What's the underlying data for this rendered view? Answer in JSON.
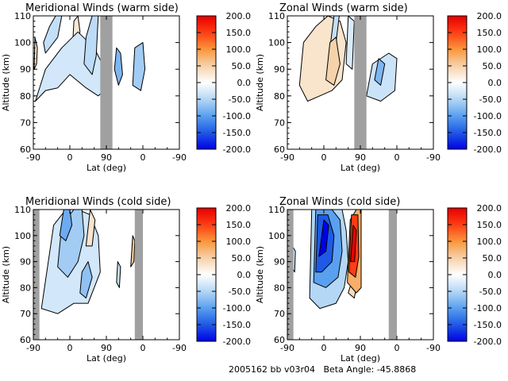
{
  "figure": {
    "footer": "2005162 bb v03r04   Beta Angle: -45.8868"
  },
  "chart_data": [
    {
      "type": "heatmap",
      "title": "Meridional Winds (warm side)",
      "xlabel": "Lat (deg)",
      "ylabel": "Altitude (km)",
      "x_ticks": [
        "-90",
        "0",
        "90",
        "0",
        "-90"
      ],
      "y_ticks": [
        "60",
        "70",
        "80",
        "90",
        "100",
        "110"
      ],
      "ylim": [
        60,
        110
      ],
      "colorbar": {
        "ticks": [
          "200.0",
          "150.0",
          "100.0",
          "50.0",
          "0.0",
          "-50.0",
          "-100.0",
          "-150.0",
          "-200.0"
        ],
        "range": [
          -200,
          200
        ]
      },
      "no_data_bands": [
        [
          75,
          105
        ]
      ],
      "contours": [
        {
          "value": -40,
          "x": [
            -60,
            -30,
            -20,
            -35,
            -50,
            -65,
            -60
          ],
          "y": [
            96,
            102,
            110,
            110,
            106,
            100,
            96
          ]
        },
        {
          "value": 25,
          "x": [
            5,
            15,
            25,
            20,
            10,
            5
          ],
          "y": [
            94,
            96,
            104,
            110,
            108,
            94
          ]
        },
        {
          "value": -45,
          "x": [
            35,
            55,
            65,
            70,
            55,
            40,
            35
          ],
          "y": [
            92,
            88,
            95,
            110,
            110,
            102,
            92
          ]
        },
        {
          "value": -30,
          "x": [
            -85,
            -60,
            -30,
            0,
            40,
            70,
            85,
            80,
            60,
            20,
            -20,
            -60,
            -85
          ],
          "y": [
            78,
            82,
            83,
            88,
            83,
            80,
            82,
            92,
            98,
            104,
            98,
            90,
            78
          ]
        },
        {
          "value": -80,
          "x": [
            110,
            120,
            130,
            125,
            115,
            110
          ],
          "y": [
            90,
            84,
            88,
            96,
            98,
            90
          ]
        },
        {
          "value": -60,
          "x": [
            155,
            175,
            185,
            180,
            160,
            155
          ],
          "y": [
            84,
            82,
            90,
            100,
            98,
            84
          ]
        },
        {
          "value": 40,
          "x": [
            -88,
            -82,
            -80,
            -86,
            -88
          ],
          "y": [
            90,
            92,
            98,
            102,
            90
          ]
        }
      ]
    },
    {
      "type": "heatmap",
      "title": "Zonal Winds (warm side)",
      "xlabel": "Lat (deg)",
      "ylabel": "Altitude (km)",
      "x_ticks": [
        "-90",
        "0",
        "90",
        "0",
        "-90"
      ],
      "y_ticks": [
        "60",
        "70",
        "80",
        "90",
        "100",
        "110"
      ],
      "ylim": [
        60,
        110
      ],
      "colorbar": {
        "ticks": [
          "200.0",
          "150.0",
          "100.0",
          "50.0",
          "0.0",
          "-50.0",
          "-100.0",
          "-150.0",
          "-200.0"
        ],
        "range": [
          -200,
          200
        ]
      },
      "no_data_bands": [
        [
          75,
          105
        ]
      ],
      "contours": [
        {
          "value": 30,
          "x": [
            -60,
            -40,
            -10,
            20,
            45,
            55,
            40,
            10,
            -20,
            -50,
            -60
          ],
          "y": [
            84,
            78,
            80,
            82,
            86,
            100,
            108,
            110,
            106,
            100,
            84
          ]
        },
        {
          "value": 50,
          "x": [
            5,
            25,
            40,
            30,
            15,
            5
          ],
          "y": [
            86,
            84,
            92,
            102,
            100,
            86
          ]
        },
        {
          "value": -25,
          "x": [
            55,
            70,
            75,
            60,
            55
          ],
          "y": [
            92,
            90,
            108,
            110,
            92
          ]
        },
        {
          "value": -40,
          "x": [
            15,
            30,
            38,
            25,
            15
          ],
          "y": [
            98,
            100,
            110,
            110,
            98
          ]
        },
        {
          "value": -35,
          "x": [
            105,
            140,
            175,
            180,
            160,
            120,
            105
          ],
          "y": [
            80,
            78,
            82,
            94,
            96,
            92,
            80
          ]
        },
        {
          "value": -80,
          "x": [
            125,
            140,
            150,
            135,
            125
          ],
          "y": [
            86,
            84,
            92,
            94,
            86
          ]
        }
      ]
    },
    {
      "type": "heatmap",
      "title": "Meridional Winds (cold side)",
      "xlabel": "Lat (deg)",
      "ylabel": "Altitude (km)",
      "x_ticks": [
        "-90",
        "0",
        "90",
        "0",
        "-90"
      ],
      "y_ticks": [
        "60",
        "70",
        "80",
        "90",
        "100",
        "110"
      ],
      "ylim": [
        60,
        110
      ],
      "colorbar": {
        "ticks": [
          "200.0",
          "150.0",
          "100.0",
          "50.0",
          "0.0",
          "-50.0",
          "-100.0",
          "-150.0",
          "-200.0"
        ],
        "range": [
          -200,
          200
        ]
      },
      "no_data_bands": [
        [
          -90,
          -75
        ],
        [
          160,
          180
        ]
      ],
      "contours": [
        {
          "value": -30,
          "x": [
            -70,
            -30,
            10,
            45,
            60,
            75,
            70,
            50,
            20,
            -10,
            -40,
            -70
          ],
          "y": [
            72,
            70,
            74,
            74,
            80,
            86,
            100,
            108,
            110,
            110,
            104,
            72
          ]
        },
        {
          "value": -60,
          "x": [
            -30,
            -5,
            20,
            35,
            30,
            10,
            -20,
            -30
          ],
          "y": [
            88,
            84,
            90,
            100,
            110,
            110,
            104,
            88
          ]
        },
        {
          "value": -90,
          "x": [
            -25,
            -10,
            5,
            0,
            -15,
            -25
          ],
          "y": [
            100,
            98,
            104,
            110,
            110,
            100
          ]
        },
        {
          "value": -70,
          "x": [
            25,
            40,
            55,
            45,
            30,
            25
          ],
          "y": [
            78,
            76,
            84,
            90,
            86,
            78
          ]
        },
        {
          "value": 30,
          "x": [
            40,
            55,
            62,
            50,
            40
          ],
          "y": [
            96,
            96,
            106,
            110,
            96
          ]
        },
        {
          "value": 60,
          "x": [
            150,
            158,
            160,
            155,
            150
          ],
          "y": [
            88,
            90,
            98,
            100,
            88
          ]
        },
        {
          "value": -40,
          "x": [
            115,
            122,
            125,
            118,
            115
          ],
          "y": [
            82,
            80,
            88,
            90,
            82
          ]
        }
      ]
    },
    {
      "type": "heatmap",
      "title": "Zonal Winds (cold side)",
      "xlabel": "Lat (deg)",
      "ylabel": "Altitude (km)",
      "x_ticks": [
        "-90",
        "0",
        "90",
        "0",
        "-90"
      ],
      "y_ticks": [
        "60",
        "70",
        "80",
        "90",
        "100",
        "110"
      ],
      "ylim": [
        60,
        110
      ],
      "colorbar": {
        "ticks": [
          "200.0",
          "150.0",
          "100.0",
          "50.0",
          "0.0",
          "-50.0",
          "-100.0",
          "-150.0",
          "-200.0"
        ],
        "range": [
          -200,
          200
        ]
      },
      "no_data_bands": [
        [
          -90,
          -75
        ],
        [
          160,
          180
        ]
      ],
      "contours": [
        {
          "value": -50,
          "x": [
            -35,
            -10,
            30,
            50,
            60,
            55,
            45,
            -30,
            -35
          ],
          "y": [
            76,
            72,
            74,
            80,
            90,
            102,
            110,
            110,
            76
          ]
        },
        {
          "value": -100,
          "x": [
            -25,
            5,
            35,
            45,
            40,
            20,
            -20,
            -25
          ],
          "y": [
            82,
            80,
            84,
            94,
            106,
            110,
            110,
            82
          ]
        },
        {
          "value": -150,
          "x": [
            -20,
            -5,
            20,
            25,
            10,
            -15,
            -20
          ],
          "y": [
            86,
            86,
            90,
            100,
            108,
            108,
            86
          ]
        },
        {
          "value": -200,
          "x": [
            -12,
            5,
            12,
            0,
            -12
          ],
          "y": [
            92,
            94,
            104,
            106,
            92
          ]
        },
        {
          "value": 80,
          "x": [
            58,
            80,
            92,
            92,
            80,
            65,
            58
          ],
          "y": [
            82,
            78,
            80,
            110,
            110,
            106,
            82
          ]
        },
        {
          "value": 150,
          "x": [
            62,
            78,
            86,
            84,
            68,
            62
          ],
          "y": [
            86,
            84,
            92,
            108,
            108,
            86
          ]
        },
        {
          "value": 200,
          "x": [
            66,
            76,
            80,
            72,
            66
          ],
          "y": [
            90,
            90,
            102,
            104,
            90
          ]
        },
        {
          "value": 40,
          "x": [
            60,
            75,
            80,
            68,
            60
          ],
          "y": [
            78,
            76,
            80,
            82,
            78
          ]
        },
        {
          "value": -40,
          "x": [
            -80,
            -72,
            -70,
            -78,
            -80
          ],
          "y": [
            88,
            86,
            94,
            96,
            88
          ]
        }
      ]
    }
  ]
}
